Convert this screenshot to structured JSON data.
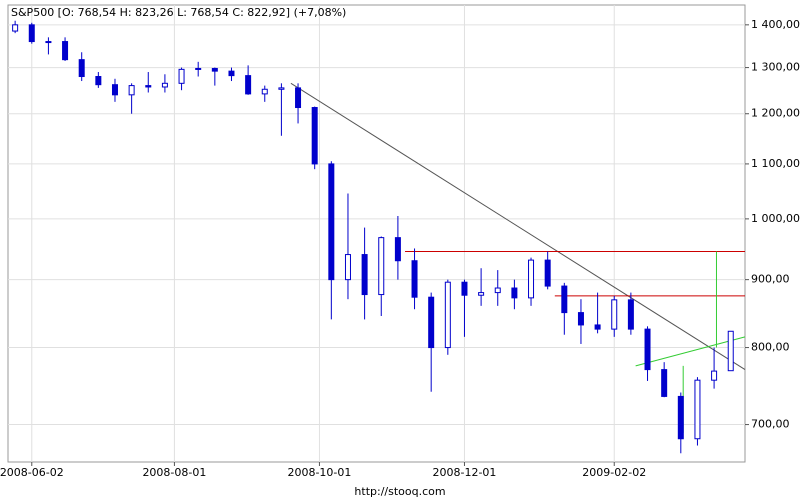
{
  "chart_data": {
    "type": "candlestick",
    "title": "S&P500 [O: 768,54  H: 823,26  L: 768,54  C: 822,92] (+7,08%)",
    "source": "http://stooq.com",
    "log_scale": true,
    "grid": true,
    "up_color": "#ffffff",
    "down_color": "#0000cc",
    "edge_color": "#0000cc",
    "x": [
      "2008-05-26",
      "2008-06-02",
      "2008-06-09",
      "2008-06-16",
      "2008-06-23",
      "2008-06-30",
      "2008-07-07",
      "2008-07-14",
      "2008-07-21",
      "2008-07-28",
      "2008-08-04",
      "2008-08-11",
      "2008-08-18",
      "2008-08-25",
      "2008-09-01",
      "2008-09-08",
      "2008-09-15",
      "2008-09-22",
      "2008-09-29",
      "2008-10-06",
      "2008-10-13",
      "2008-10-20",
      "2008-10-27",
      "2008-11-03",
      "2008-11-10",
      "2008-11-17",
      "2008-11-24",
      "2008-12-01",
      "2008-12-08",
      "2008-12-15",
      "2008-12-22",
      "2008-12-29",
      "2009-01-05",
      "2009-01-12",
      "2009-01-19",
      "2009-01-26",
      "2009-02-02",
      "2009-02-09",
      "2009-02-16",
      "2009-02-23",
      "2009-03-02",
      "2009-03-09",
      "2009-03-16",
      "2009-03-23"
    ],
    "open": [
      1385,
      1400,
      1360,
      1360,
      1318,
      1280,
      1262,
      1240,
      1260,
      1257,
      1265,
      1296,
      1298,
      1292,
      1282,
      1242,
      1252,
      1255,
      1213,
      1100,
      900,
      940,
      877,
      968,
      930,
      873,
      800,
      896,
      876,
      880,
      887,
      872,
      931,
      890,
      850,
      832,
      826,
      869,
      826,
      770,
      735,
      683,
      756,
      768.54
    ],
    "high": [
      1410,
      1405,
      1370,
      1370,
      1335,
      1290,
      1275,
      1265,
      1290,
      1285,
      1300,
      1313,
      1300,
      1300,
      1305,
      1260,
      1265,
      1265,
      1215,
      1105,
      1045,
      985,
      970,
      1005,
      950,
      880,
      900,
      900,
      918,
      915,
      900,
      935,
      945,
      895,
      870,
      880,
      875,
      880,
      830,
      780,
      740,
      760,
      800,
      823.26
    ],
    "low": [
      1380,
      1355,
      1330,
      1315,
      1270,
      1255,
      1225,
      1200,
      1245,
      1245,
      1250,
      1280,
      1260,
      1270,
      1240,
      1225,
      1155,
      1180,
      1090,
      840,
      870,
      840,
      845,
      900,
      855,
      741,
      790,
      815,
      860,
      860,
      855,
      860,
      885,
      818,
      805,
      820,
      815,
      818,
      755,
      734,
      666,
      675,
      745,
      768.54
    ],
    "close": [
      1400,
      1360,
      1360,
      1318,
      1280,
      1262,
      1240,
      1260,
      1257,
      1265,
      1296,
      1298,
      1292,
      1282,
      1242,
      1252,
      1255,
      1213,
      1100,
      900,
      940,
      877,
      968,
      930,
      873,
      800,
      896,
      876,
      880,
      887,
      872,
      931,
      890,
      850,
      832,
      826,
      869,
      826,
      770,
      735,
      683,
      756,
      768,
      822.92
    ],
    "xlim": [
      "2008-05-23",
      "2009-03-29"
    ],
    "xticks": [
      "2008-06-02",
      "2008-08-01",
      "2008-10-01",
      "2008-12-01",
      "2009-02-02"
    ],
    "ylim": [
      656,
      1449
    ],
    "yticks": [
      {
        "value": 700,
        "label": "700,00"
      },
      {
        "value": 800,
        "label": "800,00"
      },
      {
        "value": 900,
        "label": "900,00"
      },
      {
        "value": 1000,
        "label": "1 000,00"
      },
      {
        "value": 1100,
        "label": "1 100,00"
      },
      {
        "value": 1200,
        "label": "1 200,00"
      },
      {
        "value": 1300,
        "label": "1 300,00"
      },
      {
        "value": 1400,
        "label": "1 400,00"
      }
    ],
    "lines": [
      {
        "color": "#555555",
        "x": [
          "2008-09-19",
          "2009-03-29"
        ],
        "values": [
          1265,
          770
        ]
      },
      {
        "color": "#cc0000",
        "x": [
          "2008-11-06",
          "2009-03-29"
        ],
        "values": [
          945,
          945
        ]
      },
      {
        "color": "#cc0000",
        "x": [
          "2009-01-08",
          "2009-03-29"
        ],
        "values": [
          875,
          875
        ]
      },
      {
        "color": "#33cc33",
        "x": [
          "2009-02-11",
          "2009-03-29"
        ],
        "values": [
          775,
          815
        ]
      },
      {
        "color": "#33cc33",
        "x": [
          "2009-03-03",
          "2009-03-03"
        ],
        "values": [
          775,
          690
        ]
      },
      {
        "color": "#33cc33",
        "x": [
          "2009-03-17",
          "2009-03-17"
        ],
        "values": [
          800,
          945
        ]
      }
    ]
  }
}
